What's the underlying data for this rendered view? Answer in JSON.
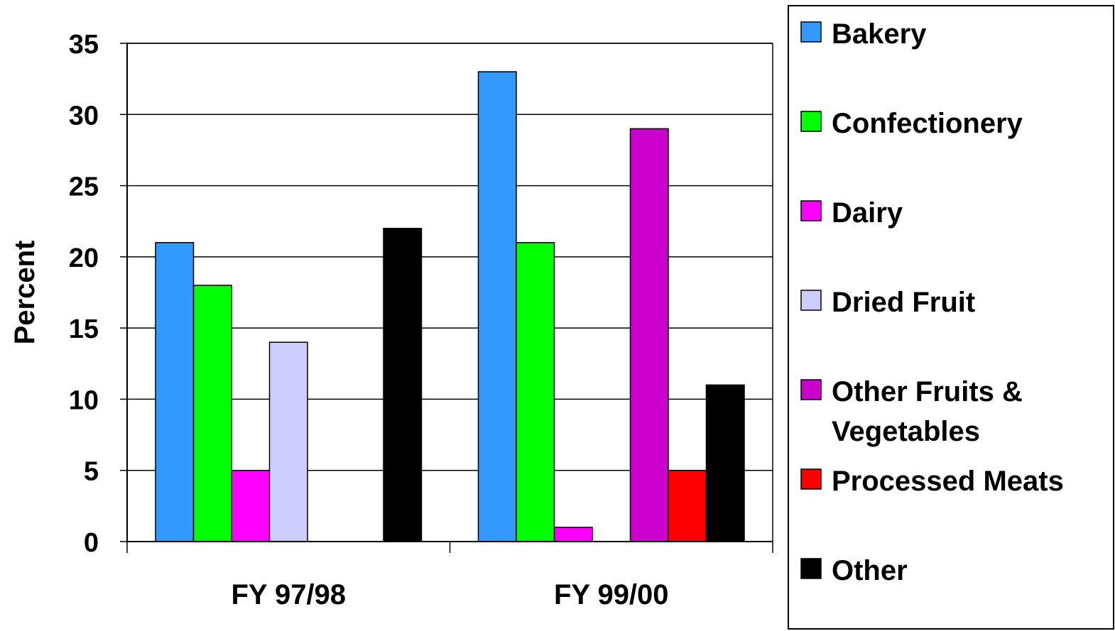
{
  "chart_data": {
    "type": "bar",
    "title": "",
    "xlabel": "",
    "ylabel": "Percent",
    "ylim": [
      0,
      35
    ],
    "yticks": [
      0,
      5,
      10,
      15,
      20,
      25,
      30,
      35
    ],
    "grid": true,
    "legend_position": "right",
    "categories": [
      "FY 97/98",
      "FY 99/00"
    ],
    "series": [
      {
        "name": "Bakery",
        "color": "#3399ff",
        "values": [
          21,
          33
        ]
      },
      {
        "name": "Confectionery",
        "color": "#00ff00",
        "values": [
          18,
          21
        ]
      },
      {
        "name": "Dairy",
        "color": "#ff00ff",
        "values": [
          5,
          1
        ]
      },
      {
        "name": "Dried Fruit",
        "color": "#ccccff",
        "values": [
          14,
          0
        ]
      },
      {
        "name": "Other Fruits & Vegetables",
        "color": "#cc00cc",
        "values": [
          0,
          29
        ]
      },
      {
        "name": "Processed Meats",
        "color": "#ff0000",
        "values": [
          0,
          5
        ]
      },
      {
        "name": "Other",
        "color": "#000000",
        "values": [
          22,
          11
        ]
      }
    ]
  }
}
